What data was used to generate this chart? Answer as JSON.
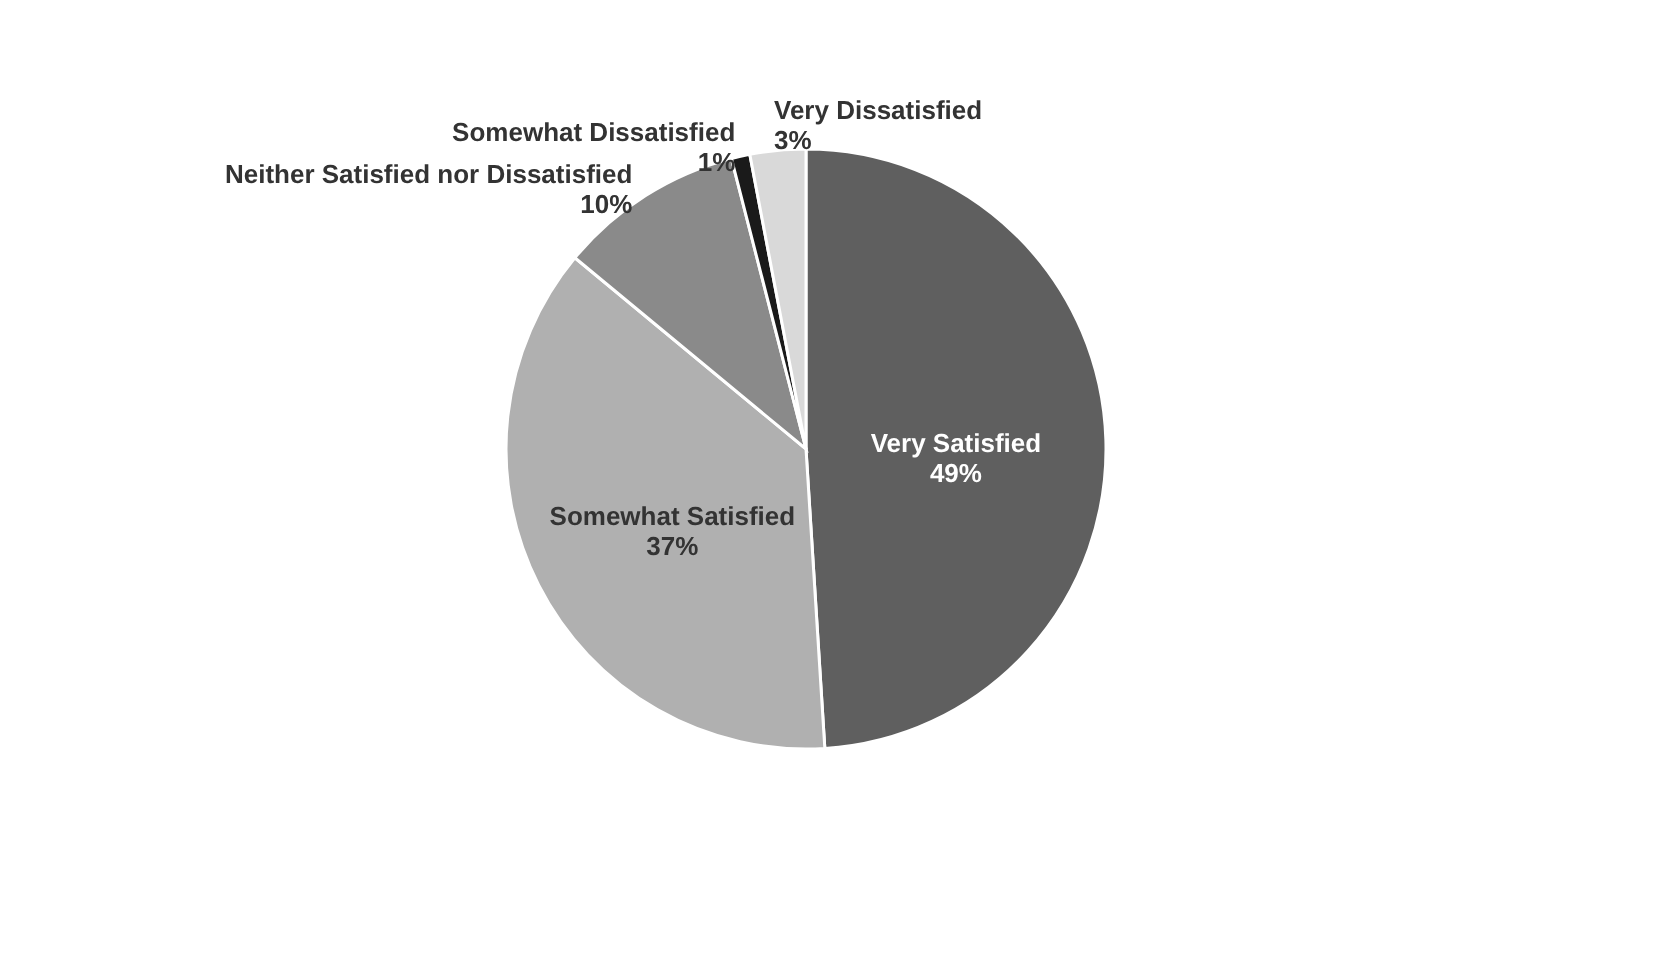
{
  "chart_data": {
    "type": "pie",
    "categories": [
      "Very Satisfied",
      "Somewhat Satisfied",
      "Neither Satisfied nor Dissatisfied",
      "Somewhat Dissatisfied",
      "Very Dissatisfied"
    ],
    "values": [
      49,
      37,
      10,
      1,
      3
    ],
    "colors": [
      "#5f5f5f",
      "#b0b0b0",
      "#8a8a8a",
      "#1a1a1a",
      "#d9d9d9"
    ],
    "value_labels": [
      "49%",
      "37%",
      "10%",
      "1%",
      "3%"
    ]
  }
}
